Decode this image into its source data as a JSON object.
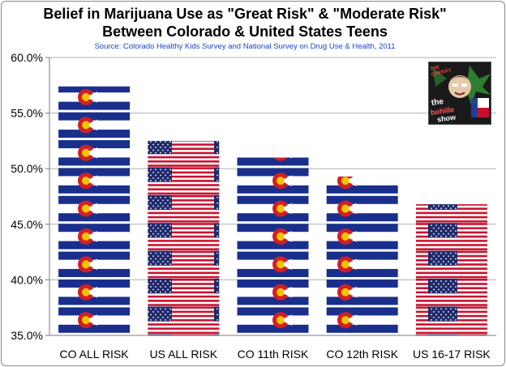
{
  "chart_data": {
    "type": "bar",
    "title_line1": "Belief in Marijuana Use as \"Great Risk\" & \"Moderate Risk\"",
    "title_line2": "Between Colorado & United States Teens",
    "subtitle": "Source: Colorado Healthy Kids Survey and National Survey on Drug Use & Health, 2011",
    "categories": [
      "CO ALL RISK",
      "US ALL RISK",
      "CO 11th RISK",
      "CO 12th RISK",
      "US 16-17 RISK"
    ],
    "values": [
      57.4,
      52.5,
      51.0,
      49.3,
      46.8
    ],
    "bar_style": [
      "colorado-flag",
      "us-flag",
      "colorado-flag",
      "colorado-flag",
      "us-flag"
    ],
    "ylim": [
      35.0,
      60.0
    ],
    "yticks": [
      "35.0%",
      "40.0%",
      "45.0%",
      "50.0%",
      "55.0%",
      "60.0%"
    ],
    "grid": true,
    "xlabel": "",
    "ylabel": ""
  },
  "logo": {
    "text_top": "THE CHEKKY",
    "text_show": [
      "the",
      "bohille",
      "show"
    ]
  },
  "colors": {
    "co_blue": "#1a2f8c",
    "co_red": "#d11f26",
    "co_gold": "#f5c400",
    "us_red": "#c8102e",
    "us_blue": "#1f2a6b",
    "grid": "#b0b0b0",
    "axis": "#7a7a7a",
    "source": "#1f3fd1"
  }
}
